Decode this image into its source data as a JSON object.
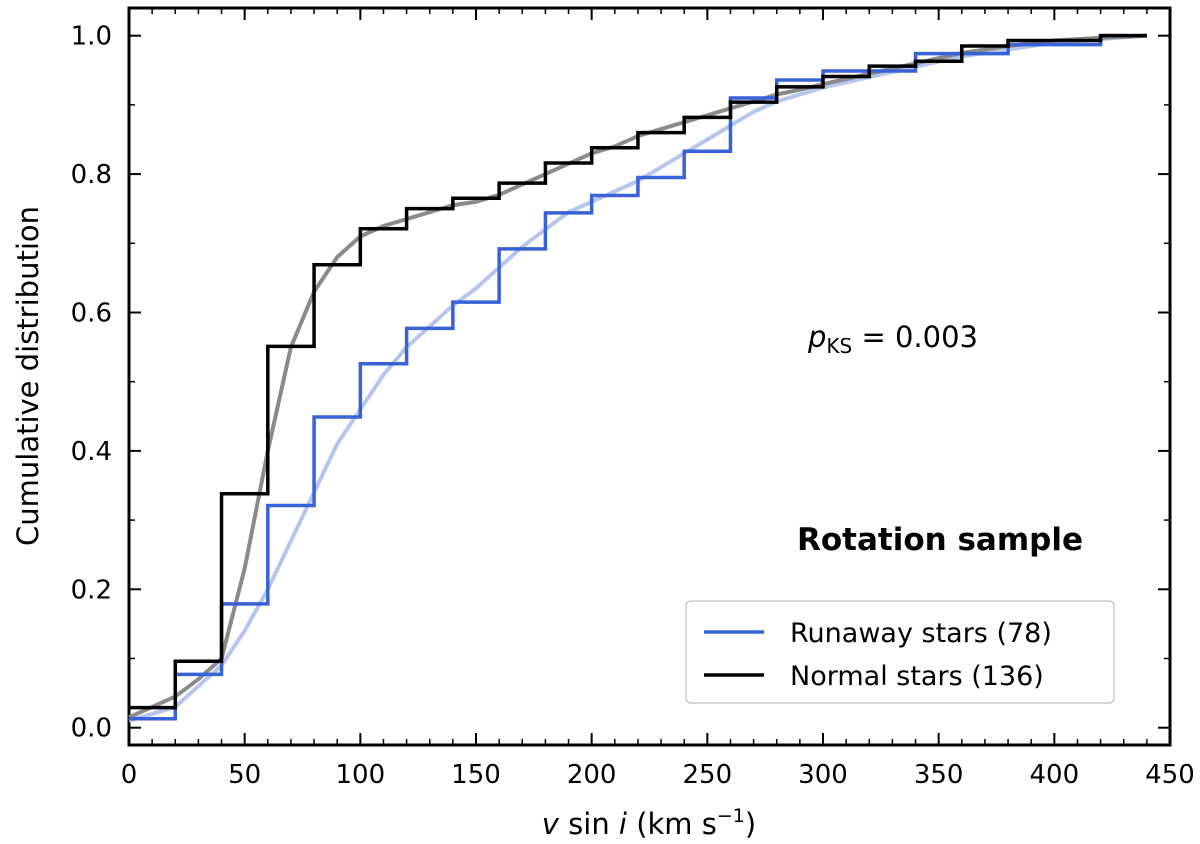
{
  "chart_data": {
    "type": "line",
    "step": true,
    "title": "Rotation sample",
    "annotation": {
      "var": "p",
      "sub": "KS",
      "text": " = 0.003"
    },
    "xlabel": {
      "italic_v": "v",
      "mid": " sin ",
      "italic_i": "i",
      "unit": " (km s",
      "exp": "−1",
      "close": ")"
    },
    "ylabel": "Cumulative distribution",
    "xlim": [
      0,
      450
    ],
    "ylim": [
      -0.025,
      1.04
    ],
    "x_ticks": [
      0,
      50,
      100,
      150,
      200,
      250,
      300,
      350,
      400,
      450
    ],
    "x_tick_labels": [
      "0",
      "50",
      "100",
      "150",
      "200",
      "250",
      "300",
      "350",
      "400",
      "450"
    ],
    "y_ticks": [
      0.0,
      0.2,
      0.4,
      0.6,
      0.8,
      1.0
    ],
    "y_tick_labels": [
      "0.0",
      "0.2",
      "0.4",
      "0.6",
      "0.8",
      "1.0"
    ],
    "grid": false,
    "legend": {
      "position": "bottom-right"
    },
    "series": [
      {
        "name": "Runaway stars (78)",
        "color": "#3a62d8",
        "style": "step",
        "x": [
          0,
          20,
          40,
          60,
          80,
          100,
          120,
          140,
          160,
          180,
          200,
          220,
          240,
          260,
          280,
          300,
          320,
          340,
          360,
          380,
          400,
          420,
          440
        ],
        "y": [
          0.013,
          0.077,
          0.179,
          0.321,
          0.449,
          0.526,
          0.577,
          0.615,
          0.692,
          0.744,
          0.769,
          0.795,
          0.833,
          0.91,
          0.936,
          0.949,
          0.949,
          0.974,
          0.974,
          0.987,
          0.987,
          1.0,
          1.0
        ]
      },
      {
        "name": "Normal stars (136)",
        "color": "#000000",
        "style": "step",
        "x": [
          0,
          20,
          40,
          60,
          80,
          100,
          120,
          140,
          160,
          180,
          200,
          220,
          240,
          260,
          280,
          300,
          320,
          340,
          360,
          380,
          400,
          420,
          440
        ],
        "y": [
          0.029,
          0.096,
          0.338,
          0.551,
          0.669,
          0.721,
          0.75,
          0.765,
          0.787,
          0.816,
          0.838,
          0.86,
          0.882,
          0.904,
          0.926,
          0.941,
          0.956,
          0.963,
          0.985,
          0.993,
          0.993,
          1.0,
          1.0
        ]
      },
      {
        "color": "#b5c6ee",
        "style": "line",
        "x": [
          0,
          10,
          20,
          30,
          40,
          50,
          60,
          70,
          80,
          90,
          100,
          110,
          120,
          130,
          140,
          150,
          160,
          170,
          180,
          190,
          200,
          210,
          220,
          230,
          240,
          250,
          260,
          270,
          280,
          290,
          300,
          320,
          340,
          360,
          380,
          400,
          420,
          440
        ],
        "y": [
          0.01,
          0.02,
          0.03,
          0.06,
          0.09,
          0.14,
          0.2,
          0.27,
          0.34,
          0.41,
          0.46,
          0.51,
          0.55,
          0.58,
          0.61,
          0.635,
          0.665,
          0.695,
          0.72,
          0.745,
          0.76,
          0.775,
          0.79,
          0.81,
          0.83,
          0.85,
          0.87,
          0.89,
          0.905,
          0.915,
          0.925,
          0.94,
          0.955,
          0.97,
          0.98,
          0.99,
          0.995,
          1.0
        ]
      },
      {
        "color": "#8a8a8a",
        "style": "line",
        "x": [
          0,
          10,
          20,
          30,
          40,
          50,
          60,
          70,
          80,
          90,
          100,
          110,
          120,
          130,
          140,
          150,
          160,
          170,
          180,
          190,
          200,
          210,
          220,
          230,
          240,
          250,
          260,
          270,
          280,
          290,
          300,
          320,
          340,
          360,
          380,
          400,
          420,
          440
        ],
        "y": [
          0.015,
          0.03,
          0.045,
          0.07,
          0.1,
          0.23,
          0.4,
          0.55,
          0.63,
          0.68,
          0.71,
          0.725,
          0.735,
          0.745,
          0.755,
          0.76,
          0.77,
          0.785,
          0.8,
          0.815,
          0.83,
          0.84,
          0.855,
          0.865,
          0.875,
          0.885,
          0.895,
          0.905,
          0.915,
          0.922,
          0.93,
          0.945,
          0.96,
          0.975,
          0.985,
          0.993,
          0.997,
          1.0
        ]
      }
    ]
  }
}
